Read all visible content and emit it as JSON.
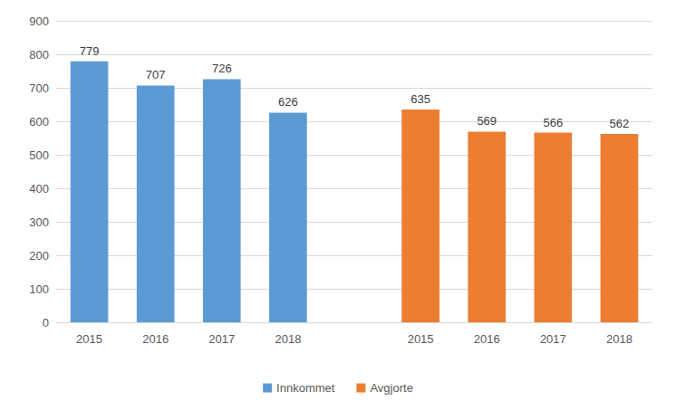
{
  "chart_data": {
    "type": "bar",
    "categories": [
      "2015",
      "2016",
      "2017",
      "2018",
      null,
      "2015",
      "2016",
      "2017",
      "2018"
    ],
    "series": [
      {
        "name": "Innkommet",
        "color": "#5b9bd5",
        "values": [
          779,
          707,
          726,
          626,
          null,
          null,
          null,
          null,
          null
        ]
      },
      {
        "name": "Avgjorte",
        "color": "#ed7d31",
        "values": [
          null,
          null,
          null,
          null,
          null,
          635,
          569,
          566,
          562
        ]
      }
    ],
    "ylim": [
      0,
      900
    ],
    "yticks": [
      0,
      100,
      200,
      300,
      400,
      500,
      600,
      700,
      800,
      900
    ],
    "grid": true,
    "legend": "bottom",
    "data_labels": true
  }
}
